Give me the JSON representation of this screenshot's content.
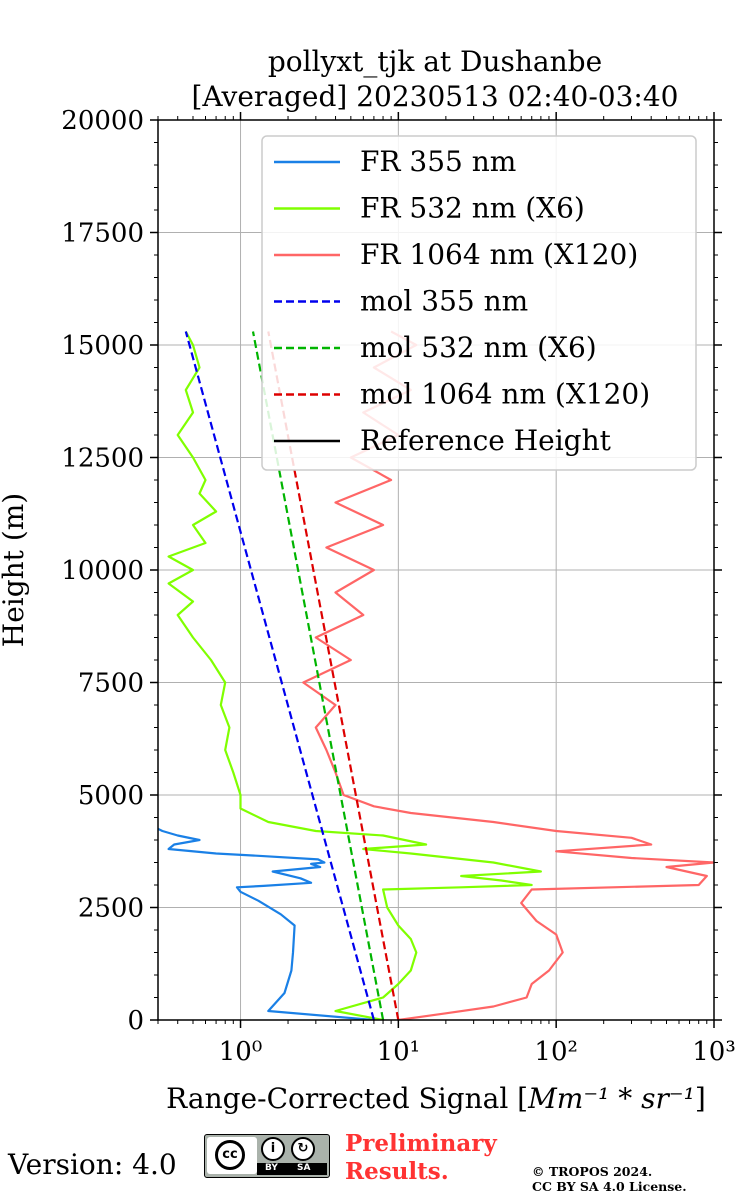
{
  "chart_data": {
    "type": "line",
    "title_line1": "pollyxt_tjk at Dushanbe",
    "title_line2": "[Averaged] 20230513 02:40-03:40",
    "xlabel_prefix": "Range-Corrected Signal [",
    "xlabel_math": "Mm⁻¹ * sr⁻¹",
    "xlabel_suffix": "]",
    "ylabel": "Height (m)",
    "xscale": "log",
    "xlim": [
      0.3,
      1000
    ],
    "ylim": [
      0,
      20000
    ],
    "grid": true,
    "legend_position": "top-right",
    "yticks": [
      "0",
      "2500",
      "5000",
      "7500",
      "10000",
      "12500",
      "15000",
      "17500",
      "20000"
    ],
    "xticks": [
      {
        "value": 1,
        "label": "10⁰"
      },
      {
        "value": 10,
        "label": "10¹"
      },
      {
        "value": 100,
        "label": "10²"
      },
      {
        "value": 1000,
        "label": "10³"
      }
    ],
    "series": [
      {
        "name": "FR 355 nm",
        "color": "#1a80e6",
        "style": "solid",
        "points": [
          [
            7,
            0
          ],
          [
            1.5,
            200
          ],
          [
            1.9,
            600
          ],
          [
            2.1,
            1100
          ],
          [
            2.15,
            1500
          ],
          [
            2.2,
            2100
          ],
          [
            1.8,
            2350
          ],
          [
            1.3,
            2650
          ],
          [
            1.0,
            2850
          ],
          [
            0.95,
            2950
          ],
          [
            1.4,
            2980
          ],
          [
            2.8,
            3050
          ],
          [
            2.4,
            3150
          ],
          [
            1.6,
            3300
          ],
          [
            3.2,
            3400
          ],
          [
            2.8,
            3470
          ],
          [
            3.4,
            3500
          ],
          [
            3.1,
            3570
          ],
          [
            1.3,
            3650
          ],
          [
            0.7,
            3700
          ],
          [
            0.35,
            3800
          ],
          [
            0.38,
            3900
          ],
          [
            0.55,
            4000
          ],
          [
            0.4,
            4100
          ],
          [
            0.32,
            4200
          ],
          [
            0.3,
            4250
          ]
        ]
      },
      {
        "name": "FR 532 nm (X6)",
        "color": "#80ff00",
        "style": "solid",
        "points": [
          [
            8,
            0
          ],
          [
            4,
            200
          ],
          [
            8,
            500
          ],
          [
            10,
            800
          ],
          [
            12,
            1100
          ],
          [
            13,
            1500
          ],
          [
            12,
            1800
          ],
          [
            10,
            2100
          ],
          [
            8.5,
            2500
          ],
          [
            8,
            2900
          ],
          [
            25,
            2950
          ],
          [
            70,
            3000
          ],
          [
            45,
            3100
          ],
          [
            25,
            3200
          ],
          [
            80,
            3300
          ],
          [
            40,
            3500
          ],
          [
            12,
            3700
          ],
          [
            6,
            3800
          ],
          [
            15,
            3900
          ],
          [
            8,
            4100
          ],
          [
            3,
            4200
          ],
          [
            1.5,
            4400
          ],
          [
            1.0,
            4700
          ],
          [
            1.0,
            5000
          ],
          [
            0.9,
            5500
          ],
          [
            0.8,
            6000
          ],
          [
            0.85,
            6500
          ],
          [
            0.75,
            7000
          ],
          [
            0.8,
            7500
          ],
          [
            0.65,
            8000
          ],
          [
            0.5,
            8500
          ],
          [
            0.4,
            9000
          ],
          [
            0.5,
            9300
          ],
          [
            0.35,
            9700
          ],
          [
            0.5,
            10000
          ],
          [
            0.35,
            10300
          ],
          [
            0.6,
            10600
          ],
          [
            0.5,
            11000
          ],
          [
            0.7,
            11300
          ],
          [
            0.55,
            11700
          ],
          [
            0.6,
            12000
          ],
          [
            0.5,
            12500
          ],
          [
            0.4,
            13000
          ],
          [
            0.5,
            13500
          ],
          [
            0.45,
            14000
          ],
          [
            0.55,
            14500
          ],
          [
            0.5,
            15000
          ],
          [
            0.45,
            15300
          ]
        ]
      },
      {
        "name": "FR 1064 nm (X120)",
        "color": "#ff6666",
        "style": "solid",
        "points": [
          [
            10,
            0
          ],
          [
            20,
            150
          ],
          [
            40,
            300
          ],
          [
            65,
            500
          ],
          [
            70,
            800
          ],
          [
            90,
            1100
          ],
          [
            110,
            1500
          ],
          [
            100,
            1900
          ],
          [
            75,
            2200
          ],
          [
            60,
            2600
          ],
          [
            70,
            2900
          ],
          [
            800,
            3000
          ],
          [
            900,
            3200
          ],
          [
            500,
            3400
          ],
          [
            1000,
            3500
          ],
          [
            300,
            3600
          ],
          [
            100,
            3750
          ],
          [
            400,
            3900
          ],
          [
            300,
            4050
          ],
          [
            100,
            4200
          ],
          [
            40,
            4400
          ],
          [
            12,
            4600
          ],
          [
            7,
            4750
          ],
          [
            4.5,
            5000
          ],
          [
            4,
            5500
          ],
          [
            3.5,
            6000
          ],
          [
            3,
            6500
          ],
          [
            4,
            7000
          ],
          [
            2.5,
            7500
          ],
          [
            5,
            8000
          ],
          [
            3,
            8500
          ],
          [
            6,
            9000
          ],
          [
            4,
            9500
          ],
          [
            7,
            10000
          ],
          [
            3.5,
            10500
          ],
          [
            8,
            11000
          ],
          [
            4,
            11500
          ],
          [
            9,
            12000
          ],
          [
            5,
            12500
          ],
          [
            10,
            13000
          ],
          [
            6,
            13500
          ],
          [
            12,
            14000
          ],
          [
            7,
            14500
          ],
          [
            13,
            15000
          ],
          [
            9,
            15300
          ]
        ]
      },
      {
        "name": "mol 355 nm",
        "color": "#0000ee",
        "style": "dashed",
        "points": [
          [
            7,
            0
          ],
          [
            0.45,
            15300
          ]
        ]
      },
      {
        "name": "mol 532 nm (X6)",
        "color": "#00b400",
        "style": "dashed",
        "points": [
          [
            8,
            0
          ],
          [
            1.2,
            15300
          ]
        ]
      },
      {
        "name": "mol 1064 nm (X120)",
        "color": "#dd0000",
        "style": "dashed",
        "points": [
          [
            10,
            0
          ],
          [
            1.5,
            15300
          ]
        ]
      }
    ],
    "legend": [
      {
        "label": "FR 355 nm",
        "color": "#1a80e6",
        "style": "solid"
      },
      {
        "label": "FR 532 nm (X6)",
        "color": "#80ff00",
        "style": "solid"
      },
      {
        "label": "FR 1064 nm (X120)",
        "color": "#ff6666",
        "style": "solid"
      },
      {
        "label": "mol 355 nm",
        "color": "#0000ee",
        "style": "dashed"
      },
      {
        "label": "mol 532 nm (X6)",
        "color": "#00b400",
        "style": "dashed"
      },
      {
        "label": "mol 1064 nm (X120)",
        "color": "#dd0000",
        "style": "dashed"
      },
      {
        "label": "Reference Height",
        "color": "#000000",
        "style": "solid"
      }
    ]
  },
  "footer": {
    "version": "Version: 4.0",
    "prelim_line1": "Preliminary",
    "prelim_line2": "Results.",
    "copyright_line1": "© TROPOS 2024.",
    "copyright_line2": "CC BY SA 4.0 License.",
    "badge_cc": "cc",
    "badge_by": "BY",
    "badge_sa": "SA"
  }
}
